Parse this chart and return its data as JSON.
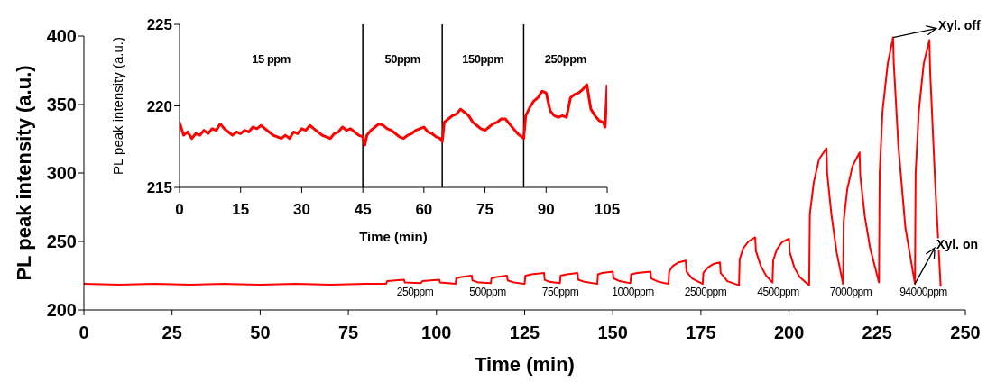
{
  "chart_data": [
    {
      "type": "line",
      "xlabel": "Time (min)",
      "ylabel": "PL peak intensity (a.u.)",
      "color": "#ff0000",
      "marker": "none",
      "xlim": [
        0,
        250
      ],
      "xticks": [
        0,
        25,
        50,
        75,
        100,
        125,
        150,
        175,
        200,
        225,
        250
      ],
      "ylim": [
        200,
        400
      ],
      "yticks": [
        200,
        250,
        300,
        350,
        400
      ],
      "x": [
        0,
        10,
        20,
        30,
        40,
        50,
        60,
        70,
        80,
        85.7,
        86,
        90.8,
        91,
        95.5,
        96,
        100.8,
        101,
        105.4,
        105.6,
        107,
        110,
        110.2,
        112,
        115.4,
        115.6,
        117,
        120,
        120.2,
        122,
        125,
        125.2,
        127,
        130.5,
        130.7,
        132,
        135,
        135.2,
        137,
        140,
        140.2,
        142,
        145.6,
        145.8,
        147,
        150,
        150.2,
        152,
        155,
        155.2,
        157,
        160.7,
        160.9,
        163,
        165.8,
        166,
        167,
        168.5,
        170.7,
        170.9,
        172.5,
        175.5,
        175.7,
        177,
        178.5,
        180.4,
        180.6,
        182.5,
        185.8,
        186,
        187,
        188.5,
        190.4,
        190.6,
        192,
        193.5,
        195.3,
        195.5,
        196.5,
        198,
        200,
        200.2,
        201.5,
        203,
        205.7,
        205.9,
        207,
        208.5,
        210.6,
        210.8,
        212,
        213.5,
        215.3,
        215.5,
        216.5,
        218,
        220,
        220.2,
        221.5,
        223,
        225.5,
        225.7,
        226.5,
        228,
        229.5,
        229.7,
        231,
        233,
        235.7,
        235.9,
        236.8,
        238.2,
        239.8,
        240,
        241.5,
        243
      ],
      "values": [
        219,
        218.5,
        219,
        218.5,
        219,
        218.5,
        219,
        218.5,
        219,
        219,
        221,
        222,
        220,
        219.5,
        221,
        222,
        220,
        219,
        223,
        224,
        225,
        221.5,
        220,
        219.5,
        223,
        224,
        225,
        221.5,
        220,
        219,
        225,
        226,
        227,
        222,
        220.5,
        219.5,
        225,
        226,
        227,
        222,
        220.5,
        219,
        226,
        227,
        228,
        223,
        221,
        219.5,
        226,
        227,
        228,
        223,
        220.5,
        219,
        228,
        232,
        234.5,
        236,
        228,
        223,
        219,
        227,
        231,
        233.5,
        234.7,
        227,
        221,
        218,
        237,
        245,
        250,
        253,
        243,
        232,
        225,
        220,
        236,
        244,
        249.5,
        252,
        242,
        231,
        224,
        218,
        270,
        293,
        310,
        318,
        300,
        270,
        242,
        219,
        265,
        288,
        305,
        315,
        298,
        268,
        245,
        220,
        300,
        345,
        380,
        399,
        380,
        320,
        260,
        219,
        300,
        345,
        380,
        397,
        375,
        290,
        217
      ],
      "annotations": [
        "250ppm",
        "500ppm",
        "750ppm",
        "1000ppm",
        "2500ppm",
        "4500ppm",
        "7000ppm",
        "94000ppm",
        {
          "text": "Xyl. off",
          "x": 229.5,
          "y": 399
        },
        {
          "text": "Xyl. on",
          "x": 235.7,
          "y": 219
        }
      ]
    },
    {
      "type": "line",
      "xlabel": "Time (min)",
      "ylabel": "PL peak intensity (a.u.)",
      "color": "#ff0000",
      "marker": "none",
      "xlim": [
        0,
        105
      ],
      "xticks": [
        0,
        15,
        30,
        45,
        60,
        75,
        90,
        105
      ],
      "ylim": [
        215,
        225
      ],
      "yticks": [
        215,
        220,
        225
      ],
      "x": [
        0,
        0.5,
        1,
        2,
        3,
        4,
        5,
        6,
        7,
        8,
        9,
        10,
        11,
        12,
        13,
        14,
        15,
        16,
        17,
        18,
        19,
        20,
        21,
        22,
        23,
        24,
        25,
        26,
        27,
        28,
        29,
        30,
        31,
        32,
        33,
        34,
        35,
        36,
        37,
        38,
        39,
        40,
        41,
        42,
        43,
        44,
        45,
        45.5,
        46,
        47,
        48,
        49,
        50,
        51,
        52,
        53,
        54,
        55,
        56,
        57,
        58,
        59,
        60,
        61,
        62,
        63,
        64,
        64.5,
        65,
        66,
        67,
        68,
        69,
        70,
        71,
        72,
        73,
        74,
        75,
        76,
        77,
        78,
        79,
        80,
        81,
        82,
        83,
        84,
        84.5,
        85,
        86,
        87,
        88,
        89,
        90,
        91,
        92,
        93,
        94,
        95,
        96,
        97,
        98,
        99,
        100,
        101,
        102,
        103,
        104,
        104.5,
        105
      ],
      "values": [
        219,
        218.6,
        218.2,
        218.4,
        218,
        218.3,
        218.2,
        218.5,
        218.3,
        218.6,
        218.5,
        218.9,
        218.6,
        218.4,
        218.2,
        218.4,
        218.3,
        218.5,
        218.4,
        218.7,
        218.6,
        218.8,
        218.6,
        218.4,
        218.2,
        218.1,
        218,
        218.2,
        218,
        218.4,
        218.3,
        218.6,
        218.5,
        218.8,
        218.6,
        218.4,
        218.2,
        218.1,
        218,
        218.3,
        218.4,
        218.7,
        218.5,
        218.6,
        218.4,
        218.2,
        218.1,
        217.6,
        218.2,
        218.5,
        218.7,
        218.9,
        218.8,
        218.6,
        218.5,
        218.3,
        218.1,
        218,
        218.2,
        218.3,
        218.5,
        218.6,
        218.7,
        218.4,
        218.3,
        218.1,
        218,
        217.8,
        219,
        219.2,
        219.4,
        219.5,
        219.8,
        219.6,
        219.4,
        219,
        218.8,
        218.6,
        218.5,
        218.7,
        218.9,
        219,
        219.2,
        219.2,
        218.9,
        218.6,
        218.3,
        218.1,
        218,
        219.4,
        219.9,
        220.3,
        220.5,
        220.9,
        220.8,
        219.7,
        219.4,
        219.3,
        219.4,
        219.3,
        220.5,
        220.7,
        220.8,
        221,
        221.3,
        219.8,
        219.4,
        219.1,
        219,
        218.7,
        221.3
      ],
      "ref_lines": [
        {
          "axis": "x",
          "value": 45,
          "color": "#000000"
        },
        {
          "axis": "x",
          "value": 64.5,
          "color": "#000000"
        },
        {
          "axis": "x",
          "value": 84.5,
          "color": "#000000"
        }
      ],
      "annotations": [
        "15 ppm",
        "50ppm",
        "150ppm",
        "250ppm"
      ]
    }
  ]
}
